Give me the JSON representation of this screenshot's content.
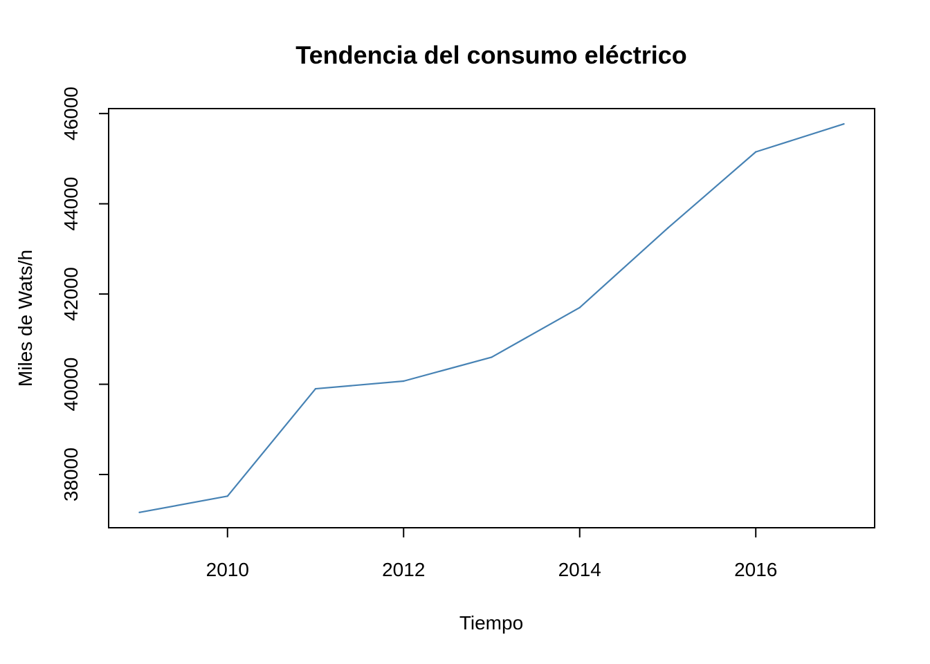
{
  "chart_data": {
    "type": "line",
    "title": "Tendencia del consumo eléctrico",
    "xlabel": "Tiempo",
    "ylabel": "Miles de Wats/h",
    "x": [
      2009,
      2010,
      2011,
      2012,
      2013,
      2014,
      2015,
      2016,
      2017
    ],
    "series": [
      {
        "values": [
          37160,
          37520,
          39900,
          40070,
          40600,
          41700,
          43460,
          45150,
          45770
        ]
      }
    ],
    "xlim": [
      2008.65,
      2017.35
    ],
    "ylim": [
      36820,
      46110
    ],
    "xticks": [
      2010,
      2012,
      2014,
      2016
    ],
    "yticks": [
      38000,
      40000,
      42000,
      44000,
      46000
    ],
    "grid": false,
    "legend": "none",
    "line_color": "#4682B4"
  }
}
